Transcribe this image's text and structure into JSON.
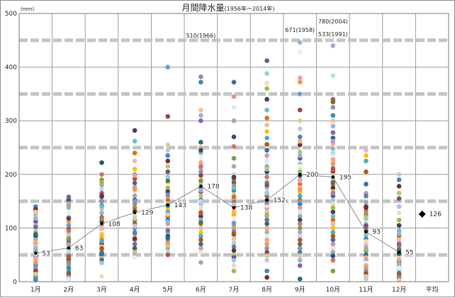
{
  "chart_data": {
    "type": "scatter",
    "title": "月間降水量",
    "title_period": "(1956年～2014年)",
    "unit_label": "(mm)",
    "ylim": [
      0,
      500
    ],
    "yticks": [
      0,
      100,
      200,
      300,
      400,
      500
    ],
    "grid_dashed_at": [
      50,
      150,
      250,
      350,
      450
    ],
    "categories": [
      "1月",
      "2月",
      "3月",
      "4月",
      "5月",
      "6月",
      "7月",
      "8月",
      "9月",
      "10月",
      "11月",
      "12月",
      "平均"
    ],
    "monthly_mean": {
      "name": "平均",
      "values": [
        53,
        63,
        108,
        129,
        143,
        178,
        138,
        152,
        200,
        195,
        93,
        55
      ],
      "labels": [
        "53",
        "63",
        "108",
        "129",
        "143",
        "178",
        "138",
        "152",
        "200",
        "195",
        "93",
        "55"
      ]
    },
    "annual_mean": {
      "value": 126,
      "label": "126"
    },
    "annotations": [
      {
        "month": "6月",
        "text": "510(1966)"
      },
      {
        "month": "9月",
        "text": "671(1958)"
      },
      {
        "month": "10月",
        "text": "780(2004)"
      },
      {
        "month": "10月",
        "text": "533(1991)"
      }
    ],
    "monthly_points": [
      [
        140,
        135,
        125,
        112,
        105,
        98,
        92,
        85,
        78,
        72,
        66,
        60,
        55,
        50,
        46,
        42,
        38,
        34,
        30,
        26,
        22,
        18,
        15,
        12,
        8,
        5,
        3,
        130,
        118,
        102,
        88,
        74,
        62,
        52,
        44,
        36,
        28,
        20,
        14
      ],
      [
        158,
        152,
        145,
        138,
        128,
        120,
        112,
        105,
        98,
        90,
        85,
        78,
        72,
        66,
        60,
        55,
        50,
        45,
        40,
        36,
        32,
        28,
        24,
        20,
        16,
        12,
        8,
        5,
        142,
        118,
        95,
        80,
        70,
        58,
        48,
        42,
        35,
        26
      ],
      [
        222,
        200,
        190,
        180,
        172,
        165,
        158,
        150,
        142,
        135,
        128,
        120,
        112,
        105,
        98,
        92,
        86,
        80,
        75,
        70,
        65,
        60,
        55,
        50,
        45,
        40,
        35,
        10,
        185,
        160,
        140,
        118,
        100,
        88,
        76,
        62,
        52
      ],
      [
        282,
        262,
        240,
        225,
        210,
        200,
        192,
        184,
        176,
        168,
        160,
        152,
        145,
        138,
        130,
        122,
        115,
        108,
        100,
        92,
        85,
        78,
        70,
        62,
        55,
        48,
        45,
        198,
        172,
        150,
        132,
        118,
        104,
        90,
        80
      ],
      [
        400,
        308,
        255,
        245,
        235,
        225,
        215,
        205,
        195,
        185,
        175,
        168,
        160,
        152,
        145,
        138,
        130,
        122,
        115,
        108,
        100,
        92,
        85,
        78,
        70,
        62,
        55,
        50,
        188,
        162,
        142,
        125,
        112,
        96,
        82,
        68
      ],
      [
        382,
        372,
        320,
        310,
        300,
        260,
        250,
        240,
        230,
        222,
        212,
        205,
        198,
        190,
        182,
        175,
        168,
        160,
        152,
        145,
        138,
        130,
        122,
        115,
        108,
        100,
        92,
        85,
        78,
        70,
        62,
        55,
        36,
        245,
        215,
        188,
        170,
        150,
        128,
        110
      ],
      [
        372,
        345,
        325,
        300,
        270,
        252,
        230,
        215,
        200,
        192,
        185,
        178,
        170,
        162,
        155,
        148,
        140,
        132,
        125,
        118,
        110,
        102,
        95,
        88,
        80,
        72,
        65,
        58,
        50,
        45,
        40,
        30,
        20,
        195,
        175,
        158,
        144,
        128,
        108,
        90
      ],
      [
        412,
        388,
        370,
        360,
        340,
        320,
        305,
        292,
        280,
        268,
        256,
        245,
        235,
        225,
        215,
        205,
        195,
        185,
        176,
        168,
        160,
        152,
        145,
        138,
        130,
        122,
        115,
        108,
        100,
        92,
        85,
        78,
        70,
        62,
        55,
        48,
        40,
        20,
        8,
        210,
        180,
        165,
        140,
        125
      ],
      [
        446,
        428,
        380,
        372,
        350,
        320,
        300,
        285,
        270,
        255,
        242,
        230,
        220,
        212,
        205,
        198,
        190,
        182,
        175,
        168,
        160,
        152,
        145,
        138,
        130,
        122,
        115,
        108,
        100,
        92,
        85,
        78,
        70,
        62,
        55,
        48,
        40,
        30,
        5,
        262,
        235,
        215,
        188,
        172,
        150
      ],
      [
        440,
        384,
        340,
        335,
        325,
        310,
        300,
        290,
        278,
        268,
        258,
        248,
        238,
        228,
        220,
        212,
        205,
        198,
        190,
        182,
        175,
        168,
        160,
        152,
        145,
        138,
        130,
        122,
        115,
        108,
        100,
        92,
        85,
        78,
        70,
        62,
        55,
        48,
        40,
        20,
        262,
        240,
        210,
        185,
        165
      ],
      [
        245,
        235,
        225,
        205,
        182,
        165,
        155,
        148,
        140,
        132,
        125,
        118,
        110,
        102,
        95,
        88,
        80,
        72,
        65,
        58,
        50,
        45,
        40,
        35,
        30,
        25,
        20,
        15,
        10,
        5,
        160,
        138,
        120,
        105,
        90,
        75,
        60
      ],
      [
        200,
        190,
        178,
        165,
        155,
        140,
        128,
        115,
        105,
        95,
        85,
        78,
        72,
        66,
        60,
        55,
        50,
        45,
        40,
        36,
        32,
        28,
        24,
        20,
        16,
        12,
        8,
        5,
        3,
        90,
        70,
        52,
        42,
        34,
        26
      ]
    ],
    "palette": [
      "#4f81bd",
      "#c0504d",
      "#9bbb59",
      "#8064a2",
      "#4bacc6",
      "#f79646",
      "#2c4d75",
      "#772c2a",
      "#5f7530",
      "#4d3b62",
      "#276a7c",
      "#b65708",
      "#729aca",
      "#cd7371",
      "#afc97a",
      "#9983b5",
      "#6fbdd1",
      "#f9ab6b",
      "#3a6aa3",
      "#a4403d",
      "#7f9e3b",
      "#6a5488",
      "#3a8fa6",
      "#d9740c",
      "#95b3d7",
      "#d99694",
      "#c4d79b",
      "#b2a2c7",
      "#92cddc",
      "#fac090",
      "#e6b9b8",
      "#ebf1de",
      "#dce6f2",
      "#ccc1da",
      "#b7dee8",
      "#fcd5b5",
      "#8eb4e3",
      "#ffc000",
      "#ff9999",
      "#a6a6a6"
    ]
  }
}
